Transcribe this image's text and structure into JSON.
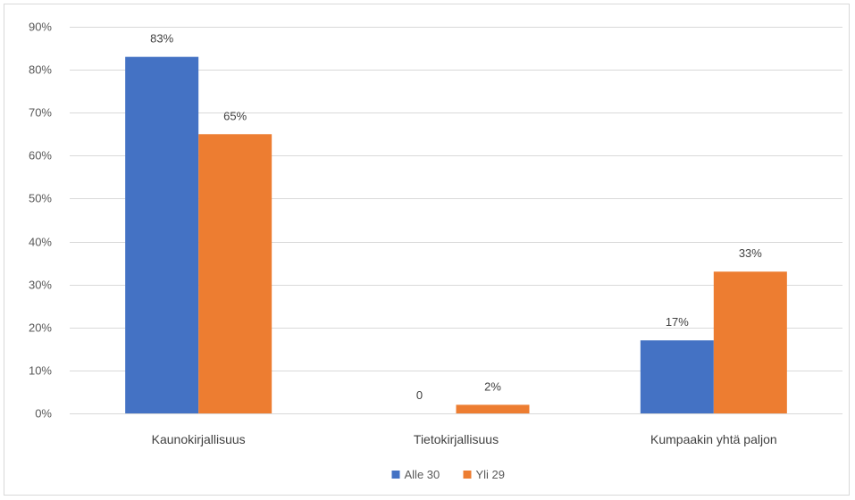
{
  "chart_data": {
    "type": "bar",
    "categories": [
      "Kaunokirjallisuus",
      "Tietokirjallisuus",
      "Kumpaakin yhtä paljon"
    ],
    "series": [
      {
        "name": "Alle 30",
        "values": [
          83,
          0,
          17
        ],
        "labels": [
          "83%",
          "0",
          "17%"
        ],
        "color": "#4472c4"
      },
      {
        "name": "Yli 29",
        "values": [
          65,
          2,
          33
        ],
        "labels": [
          "65%",
          "2%",
          "33%"
        ],
        "color": "#ed7d31"
      }
    ],
    "yticks": [
      "0%",
      "10%",
      "20%",
      "30%",
      "40%",
      "50%",
      "60%",
      "70%",
      "80%",
      "90%"
    ],
    "ylim": [
      0,
      90
    ],
    "grid": true,
    "legend_position": "bottom",
    "title": "",
    "xlabel": "",
    "ylabel": ""
  }
}
